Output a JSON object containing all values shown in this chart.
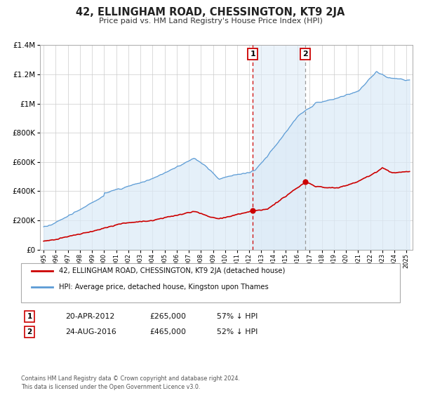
{
  "title": "42, ELLINGHAM ROAD, CHESSINGTON, KT9 2JA",
  "subtitle": "Price paid vs. HM Land Registry's House Price Index (HPI)",
  "background_color": "#ffffff",
  "plot_bg_color": "#ffffff",
  "grid_color": "#cccccc",
  "sale1_date": 2012.3,
  "sale1_price": 265000,
  "sale2_date": 2016.65,
  "sale2_price": 465000,
  "legend_line1": "42, ELLINGHAM ROAD, CHESSINGTON, KT9 2JA (detached house)",
  "legend_line2": "HPI: Average price, detached house, Kingston upon Thames",
  "table_row1": [
    "1",
    "20-APR-2012",
    "£265,000",
    "57% ↓ HPI"
  ],
  "table_row2": [
    "2",
    "24-AUG-2016",
    "£465,000",
    "52% ↓ HPI"
  ],
  "footer": "Contains HM Land Registry data © Crown copyright and database right 2024.\nThis data is licensed under the Open Government Licence v3.0.",
  "hpi_color": "#5b9bd5",
  "hpi_fill_color": "#dbeaf7",
  "price_color": "#cc0000",
  "sale_dot_color": "#cc0000",
  "shade_color": "#dbeaf7",
  "dashed_line1_color": "#cc0000",
  "dashed_line2_color": "#999999",
  "ylim": [
    0,
    1400000
  ],
  "xlim_start": 1994.7,
  "xlim_end": 2025.5
}
